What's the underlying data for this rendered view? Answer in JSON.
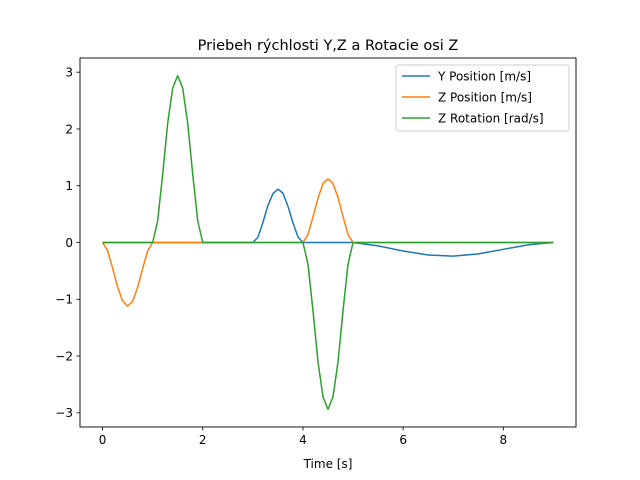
{
  "chart_data": {
    "type": "line",
    "title": "Priebeh rýchlosti Y,Z a Rotacie osi Z",
    "xlabel": "Time [s]",
    "ylabel": "",
    "xlim": [
      -0.45,
      9.45
    ],
    "ylim": [
      -3.25,
      3.25
    ],
    "xticks": [
      0,
      2,
      4,
      6,
      8
    ],
    "yticks": [
      -3,
      -2,
      -1,
      0,
      1,
      2,
      3
    ],
    "xtick_labels": [
      "0",
      "2",
      "4",
      "6",
      "8"
    ],
    "ytick_labels": [
      "−3",
      "−2",
      "−1",
      "0",
      "1",
      "2",
      "3"
    ],
    "grid": false,
    "legend_position": "top-right",
    "series": [
      {
        "name": "Y Position [m/s]",
        "color": "#1f77b4",
        "x": [
          0,
          0.5,
          1,
          1.5,
          2,
          2.5,
          3,
          3.1,
          3.2,
          3.3,
          3.4,
          3.5,
          3.6,
          3.7,
          3.8,
          3.9,
          4,
          4.5,
          5,
          5.5,
          6,
          6.5,
          7,
          7.5,
          8,
          8.5,
          9
        ],
        "y": [
          0,
          0,
          0,
          0,
          0,
          0,
          0,
          0.09,
          0.35,
          0.65,
          0.86,
          0.94,
          0.87,
          0.64,
          0.35,
          0.1,
          0,
          0,
          0,
          -0.06,
          -0.15,
          -0.22,
          -0.24,
          -0.2,
          -0.12,
          -0.04,
          0
        ]
      },
      {
        "name": "Z Position [m/s]",
        "color": "#ff7f0e",
        "x": [
          0,
          0.1,
          0.2,
          0.3,
          0.4,
          0.5,
          0.6,
          0.7,
          0.8,
          0.9,
          1,
          1.5,
          2,
          2.5,
          3,
          3.5,
          4,
          4.1,
          4.2,
          4.3,
          4.4,
          4.5,
          4.6,
          4.7,
          4.8,
          4.9,
          5,
          5.5,
          6,
          7,
          8,
          9
        ],
        "y": [
          0,
          -0.14,
          -0.45,
          -0.78,
          -1.03,
          -1.12,
          -1.04,
          -0.79,
          -0.46,
          -0.15,
          0,
          0,
          0,
          0,
          0,
          0,
          0,
          0.14,
          0.45,
          0.78,
          1.04,
          1.12,
          1.04,
          0.79,
          0.46,
          0.14,
          0,
          0,
          0,
          0,
          0,
          0
        ]
      },
      {
        "name": "Z Rotation [rad/s]",
        "color": "#2ca02c",
        "x": [
          0,
          0.5,
          1,
          1.1,
          1.2,
          1.3,
          1.4,
          1.5,
          1.6,
          1.7,
          1.8,
          1.9,
          2,
          2.5,
          3,
          3.5,
          4,
          4.1,
          4.2,
          4.3,
          4.4,
          4.5,
          4.6,
          4.7,
          4.8,
          4.9,
          5,
          5.5,
          6,
          7,
          8,
          9
        ],
        "y": [
          0,
          0,
          0,
          0.38,
          1.2,
          2.1,
          2.72,
          2.94,
          2.72,
          2.1,
          1.2,
          0.38,
          0,
          0,
          0,
          0,
          0,
          -0.38,
          -1.2,
          -2.1,
          -2.72,
          -2.94,
          -2.72,
          -2.1,
          -1.2,
          -0.38,
          0,
          0,
          0,
          0,
          0,
          0
        ]
      }
    ]
  }
}
